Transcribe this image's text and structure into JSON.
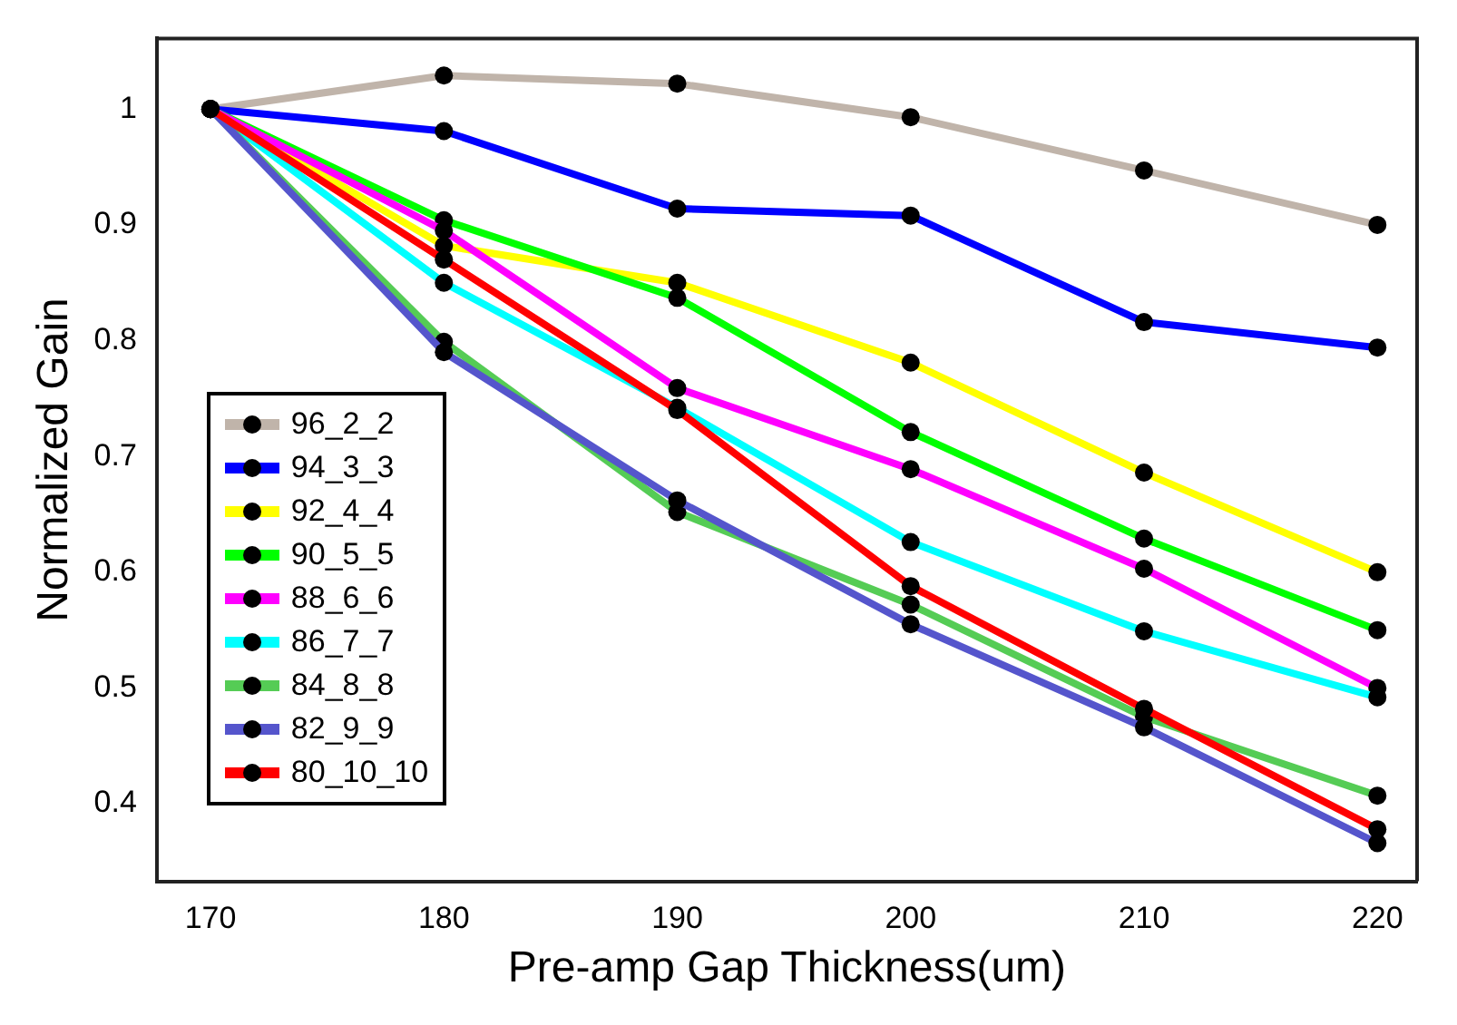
{
  "chart_data": {
    "type": "line",
    "xlabel": "Pre-amp Gap Thickness(um)",
    "ylabel": "Normalized Gain",
    "x": [
      170,
      180,
      190,
      200,
      210,
      220
    ],
    "xlim": [
      167.7,
      221.7
    ],
    "xticks": [
      170,
      180,
      190,
      200,
      210,
      220
    ],
    "ylim": [
      0.333,
      1.061
    ],
    "yticks": [
      {
        "value": 0.4,
        "label": "0.4"
      },
      {
        "value": 0.5,
        "label": "0.5"
      },
      {
        "value": 0.6,
        "label": "0.6"
      },
      {
        "value": 0.7,
        "label": "0.7"
      },
      {
        "value": 0.8,
        "label": "0.8"
      },
      {
        "value": 0.9,
        "label": "0.9"
      },
      {
        "value": 1,
        "label": "1"
      }
    ],
    "grid": false,
    "legend": "bottom left",
    "marker": "circle",
    "line_style": "solid",
    "series": [
      {
        "name": "96_2_2",
        "color": "#c0b4aa",
        "values": [
          1,
          1.029,
          1.022,
          0.993,
          0.947,
          0.9
        ]
      },
      {
        "name": "94_3_3",
        "color": "#0000ff",
        "values": [
          1,
          0.981,
          0.914,
          0.908,
          0.816,
          0.794
        ]
      },
      {
        "name": "92_4_4",
        "color": "#ffff00",
        "values": [
          1,
          0.882,
          0.85,
          0.781,
          0.686,
          0.6
        ]
      },
      {
        "name": "90_5_5",
        "color": "#00ff00",
        "values": [
          1,
          0.904,
          0.837,
          0.721,
          0.629,
          0.55
        ]
      },
      {
        "name": "88_6_6",
        "color": "#ff00ff",
        "values": [
          1,
          0.895,
          0.759,
          0.689,
          0.603,
          0.5
        ]
      },
      {
        "name": "86_7_7",
        "color": "#00ffff",
        "values": [
          1,
          0.85,
          0.742,
          0.626,
          0.549,
          0.492
        ]
      },
      {
        "name": "84_8_8",
        "color": "#55cc55",
        "values": [
          1,
          0.799,
          0.652,
          0.572,
          0.475,
          0.407
        ]
      },
      {
        "name": "82_9_9",
        "color": "#5555cc",
        "values": [
          1,
          0.79,
          0.662,
          0.555,
          0.466,
          0.366
        ]
      },
      {
        "name": "80_10_10",
        "color": "#ff0000",
        "values": [
          1,
          0.87,
          0.74,
          0.588,
          0.482,
          0.378
        ]
      }
    ]
  }
}
